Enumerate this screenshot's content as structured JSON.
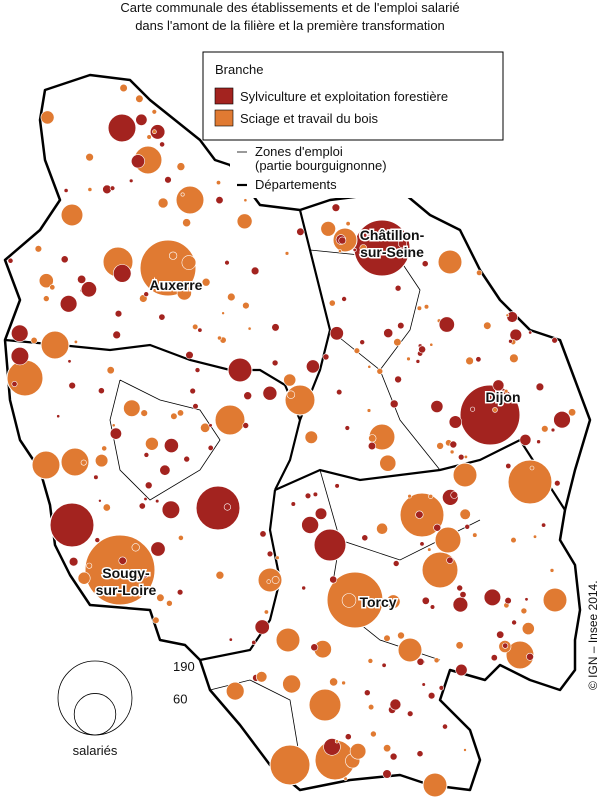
{
  "title": [
    "Carte communale des établissements et de l'emploi salarié",
    "dans l'amont de la filière et la première transformation"
  ],
  "legend": {
    "title": "Branche",
    "items": [
      {
        "label": "Sylviculture et exploitation forestière",
        "color": "#a3231f"
      },
      {
        "label": "Sciage et travail du bois",
        "color": "#e07a32"
      }
    ],
    "lines": [
      {
        "label": "Zones d'emploi",
        "sublabel": "(partie bourguignonne)"
      },
      {
        "label": "Départements"
      }
    ]
  },
  "cities": [
    {
      "lines": [
        "Auxerre"
      ]
    },
    {
      "lines": [
        "Châtillon-",
        "sur-Seine"
      ]
    },
    {
      "lines": [
        "Dijon"
      ]
    },
    {
      "lines": [
        "Sougy-",
        "sur-Loire"
      ]
    },
    {
      "lines": [
        "Torcy"
      ]
    }
  ],
  "size_legend": {
    "values": [
      190,
      60
    ],
    "unit": "salariés"
  },
  "credit": "© IGN – Insee 2014."
}
